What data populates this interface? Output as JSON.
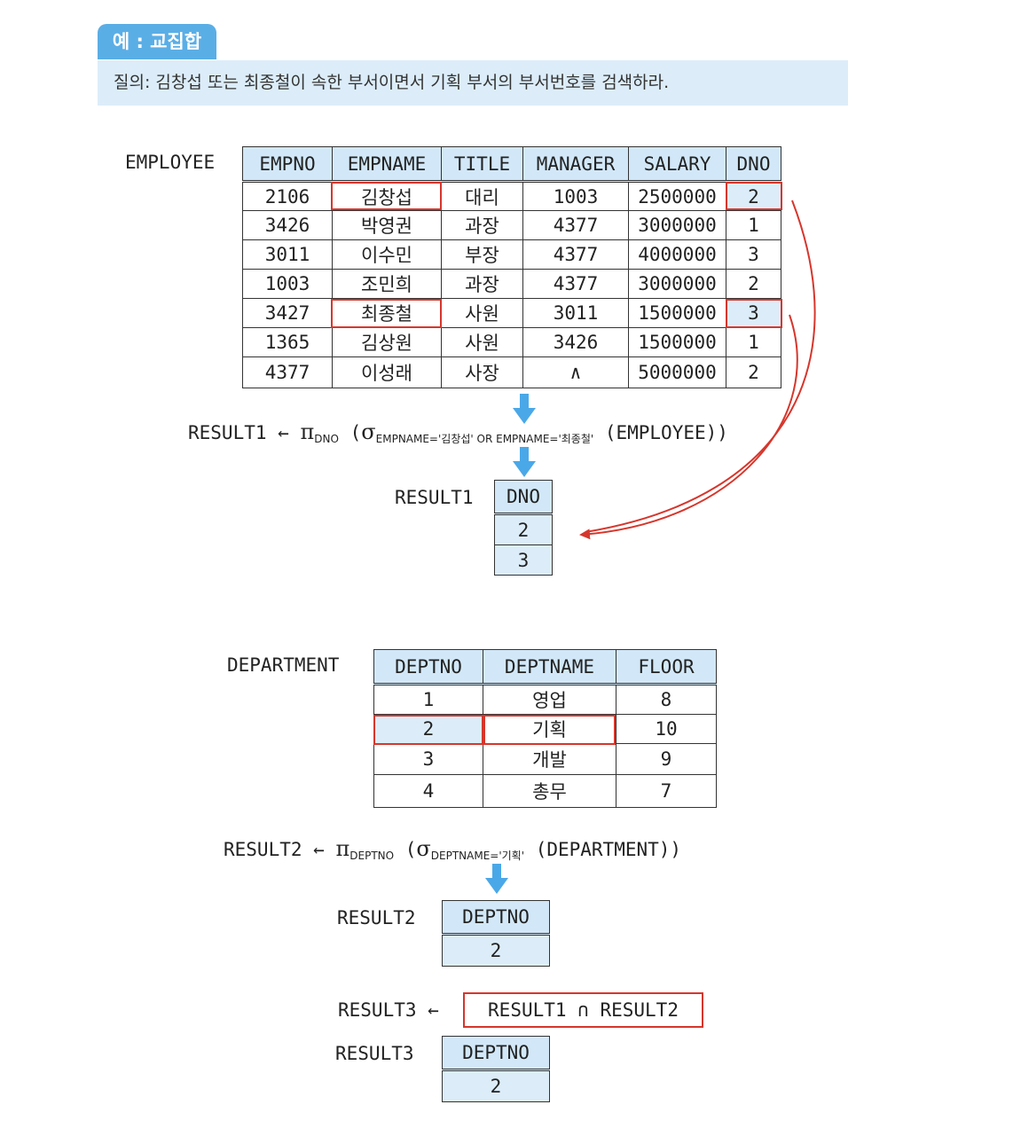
{
  "header": {
    "tag": "예 : 교집합",
    "query": "질의: 김창섭 또는 최종철이 속한 부서이면서 기획 부서의 부서번호를 검색하라."
  },
  "employee": {
    "name": "EMPLOYEE",
    "columns": [
      "EMPNO",
      "EMPNAME",
      "TITLE",
      "MANAGER",
      "SALARY",
      "DNO"
    ],
    "rows": [
      [
        "2106",
        "김창섭",
        "대리",
        "1003",
        "2500000",
        "2"
      ],
      [
        "3426",
        "박영권",
        "과장",
        "4377",
        "3000000",
        "1"
      ],
      [
        "3011",
        "이수민",
        "부장",
        "4377",
        "4000000",
        "3"
      ],
      [
        "1003",
        "조민희",
        "과장",
        "4377",
        "3000000",
        "2"
      ],
      [
        "3427",
        "최종철",
        "사원",
        "3011",
        "1500000",
        "3"
      ],
      [
        "1365",
        "김상원",
        "사원",
        "3426",
        "1500000",
        "1"
      ],
      [
        "4377",
        "이성래",
        "사장",
        "∧",
        "5000000",
        "2"
      ]
    ]
  },
  "expr1": {
    "lhs": "RESULT1",
    "arrow": "←",
    "pi": "π",
    "pi_sub": "DNO",
    "open": "(",
    "sigma": "σ",
    "sigma_sub": "EMPNAME='김창섭' OR  EMPNAME='최종철'",
    "rest": "(EMPLOYEE))"
  },
  "result1": {
    "name": "RESULT1",
    "columns": [
      "DNO"
    ],
    "rows": [
      [
        "2"
      ],
      [
        "3"
      ]
    ]
  },
  "department": {
    "name": "DEPARTMENT",
    "columns": [
      "DEPTNO",
      "DEPTNAME",
      "FLOOR"
    ],
    "rows": [
      [
        "1",
        "영업",
        "8"
      ],
      [
        "2",
        "기획",
        "10"
      ],
      [
        "3",
        "개발",
        "9"
      ],
      [
        "4",
        "총무",
        "7"
      ]
    ]
  },
  "expr2": {
    "lhs": "RESULT2",
    "arrow": "←",
    "pi": "π",
    "pi_sub": "DEPTNO",
    "open": "(",
    "sigma": "σ",
    "sigma_sub": "DEPTNAME='기획'",
    "rest": "(DEPARTMENT))"
  },
  "result2": {
    "name": "RESULT2",
    "columns": [
      "DEPTNO"
    ],
    "rows": [
      [
        "2"
      ]
    ]
  },
  "expr3": {
    "lhs": "RESULT3",
    "arrow": "←",
    "rhs": "RESULT1  ∩  RESULT2"
  },
  "result3": {
    "name": "RESULT3",
    "columns": [
      "DEPTNO"
    ],
    "rows": [
      [
        "2"
      ]
    ]
  },
  "colors": {
    "accent_red": "#d6362c",
    "header_blue": "#d2e8f8",
    "tag_blue": "#5aaee6",
    "arrow_blue": "#4aa8e8"
  }
}
